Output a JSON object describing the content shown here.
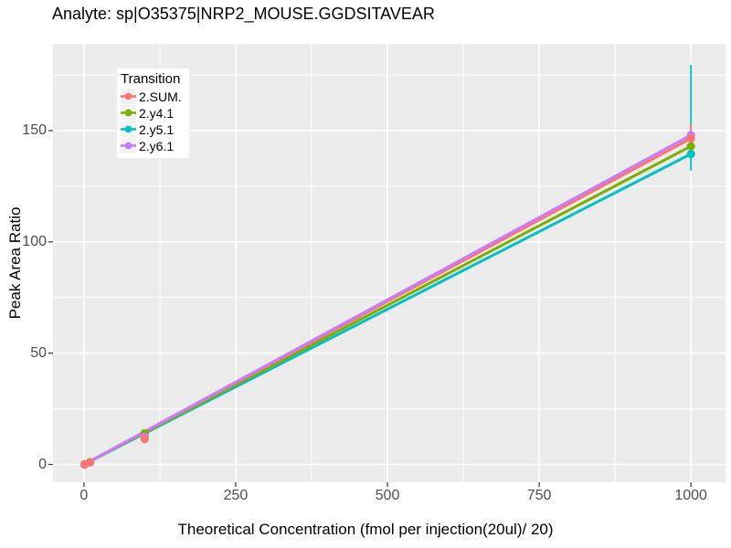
{
  "chart_data": {
    "type": "line",
    "title": "Analyte: sp|O35375|NRP2_MOUSE.GGDSITAVEAR",
    "xlabel": "Theoretical Concentration (fmol per injection(20ul)/ 20)",
    "ylabel": "Peak Area Ratio",
    "legend_title": "Transition",
    "legend_position": "top-left-inside",
    "grid": true,
    "panel_bg": "#ebebeb",
    "grid_color": "#ffffff",
    "tick_color": "#333333",
    "tick_label_color": "#4d4d4d",
    "x_ticks": [
      0,
      250,
      500,
      750,
      1000
    ],
    "y_ticks": [
      0,
      50,
      100,
      150
    ],
    "x_minor_gridlines": [
      125,
      375,
      625,
      875
    ],
    "y_minor_gridlines": [
      25,
      75,
      125,
      175
    ],
    "xlim": [
      -51,
      1057
    ],
    "ylim": [
      -8,
      189
    ],
    "x": [
      1,
      10,
      100,
      1000
    ],
    "series": [
      {
        "name": "2.SUM.",
        "color": "#F8766D",
        "values": [
          0,
          1,
          11.5,
          146.5
        ],
        "error_bar": {
          "x": 1000,
          "low": 140,
          "high": 153
        }
      },
      {
        "name": "2.y4.1",
        "color": "#7CAE00",
        "values": [
          0,
          1,
          14,
          143
        ],
        "error_bar": null
      },
      {
        "name": "2.y5.1",
        "color": "#00BFC4",
        "values": [
          0,
          1,
          13,
          139.5
        ],
        "error_bar": {
          "x": 1000,
          "low": 132,
          "high": 179.5
        }
      },
      {
        "name": "2.y6.1",
        "color": "#C77CFF",
        "values": [
          0,
          1,
          12.5,
          148
        ],
        "error_bar": null
      }
    ]
  }
}
